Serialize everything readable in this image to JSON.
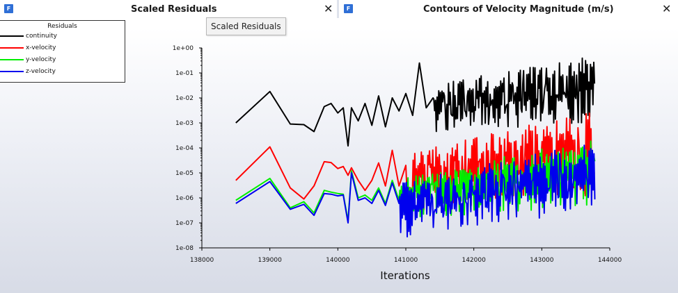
{
  "left_window": {
    "title": "Scaled Residuals",
    "icon": "fluent-app-icon",
    "close_label": "✕",
    "tooltip": "Scaled Residuals"
  },
  "right_window": {
    "title": "Contours of Velocity Magnitude (m/s)",
    "icon": "fluent-app-icon",
    "close_label": "✕"
  },
  "app_icon_glyph": "F",
  "legend": {
    "title": "Residuals",
    "items": [
      {
        "label": "continuity",
        "color": "#000000"
      },
      {
        "label": "x-velocity",
        "color": "#ff0000"
      },
      {
        "label": "y-velocity",
        "color": "#00ee00"
      },
      {
        "label": "z-velocity",
        "color": "#0000ee"
      }
    ]
  },
  "chart_data": {
    "type": "line",
    "xlabel": "Iterations",
    "ylabel": "",
    "y_scale": "log",
    "xlim": [
      138000,
      144000
    ],
    "ylim": [
      1e-08,
      1
    ],
    "x_ticks": [
      "138000",
      "139000",
      "140000",
      "141000",
      "142000",
      "143000",
      "144000"
    ],
    "x_tick_values": [
      138000,
      139000,
      140000,
      141000,
      142000,
      143000,
      144000
    ],
    "y_ticks": [
      "1e+00",
      "1e-01",
      "1e-02",
      "1e-03",
      "1e-04",
      "1e-05",
      "1e-06",
      "1e-07",
      "1e-08"
    ],
    "y_tick_exponents": [
      0,
      -1,
      -2,
      -3,
      -4,
      -5,
      -6,
      -7,
      -8
    ],
    "grid": false,
    "legend_position": "top-left",
    "x_end": 143780,
    "series": [
      {
        "name": "continuity",
        "color": "#000000",
        "x": [
          138500,
          139000,
          139300,
          139500,
          139650,
          139800,
          139900,
          140000,
          140080,
          140150,
          140200,
          140300,
          140400,
          140500,
          140600,
          140700,
          140800,
          140900,
          141000,
          141100,
          141200,
          141300,
          141400
        ],
        "y": [
          0.001,
          0.018,
          0.0009,
          0.00085,
          0.00045,
          0.0045,
          0.006,
          0.0025,
          0.004,
          0.00012,
          0.004,
          0.0012,
          0.006,
          0.0008,
          0.012,
          0.0007,
          0.01,
          0.003,
          0.015,
          0.002,
          0.25,
          0.004,
          0.01
        ],
        "noise": {
          "x_start": 141400,
          "x_end": 143780,
          "log_low": [
            -3.4,
            -3.0
          ],
          "log_high": [
            -1.5,
            -0.2
          ],
          "seed": 7
        }
      },
      {
        "name": "x-velocity",
        "color": "#ff0000",
        "x": [
          138500,
          139000,
          139300,
          139500,
          139650,
          139800,
          139900,
          140000,
          140080,
          140150,
          140200,
          140300,
          140400,
          140500,
          140600,
          140700,
          140800,
          140900,
          141000
        ],
        "y": [
          5e-06,
          0.00011,
          2.5e-06,
          9e-07,
          3e-06,
          2.8e-05,
          2.6e-05,
          1.5e-05,
          1.8e-05,
          8e-06,
          1.6e-05,
          5e-06,
          2e-06,
          5e-06,
          2.5e-05,
          3e-06,
          8e-05,
          3e-06,
          2e-05
        ],
        "noise": {
          "x_start": 141000,
          "x_end": 143780,
          "log_low": [
            -6.6,
            -6.0
          ],
          "log_high": [
            -4.2,
            -2.5
          ],
          "seed": 13
        }
      },
      {
        "name": "y-velocity",
        "color": "#00ee00",
        "x": [
          138500,
          139000,
          139300,
          139500,
          139650,
          139800,
          139900,
          140000,
          140080,
          140150,
          140200,
          140300,
          140400,
          140500,
          140600,
          140700,
          140800,
          140900
        ],
        "y": [
          8e-07,
          6e-06,
          4e-07,
          7e-07,
          2.5e-07,
          2e-06,
          1.7e-06,
          1.5e-06,
          1.4e-06,
          1.2e-07,
          1.2e-05,
          1e-06,
          1.3e-06,
          8e-07,
          2.5e-06,
          6e-07,
          5e-06,
          8e-07
        ],
        "noise": {
          "x_start": 140900,
          "x_end": 143780,
          "log_low": [
            -6.9,
            -6.3
          ],
          "log_high": [
            -5.2,
            -3.6
          ],
          "seed": 29
        }
      },
      {
        "name": "z-velocity",
        "color": "#0000ee",
        "x": [
          138500,
          139000,
          139300,
          139500,
          139650,
          139800,
          139900,
          140000,
          140080,
          140150,
          140200,
          140300,
          140400,
          140500,
          140600,
          140700,
          140800,
          140900
        ],
        "y": [
          6e-07,
          4.5e-06,
          3.5e-07,
          5.5e-07,
          2e-07,
          1.5e-06,
          1.4e-06,
          1.2e-06,
          1.3e-06,
          1e-07,
          1e-05,
          8e-07,
          1e-06,
          6e-07,
          2e-06,
          5e-07,
          4e-06,
          6e-07
        ],
        "noise": {
          "x_start": 140900,
          "x_end": 143780,
          "log_low": [
            -7.6,
            -6.6
          ],
          "log_high": [
            -5.4,
            -3.7
          ],
          "seed": 41
        }
      }
    ]
  }
}
